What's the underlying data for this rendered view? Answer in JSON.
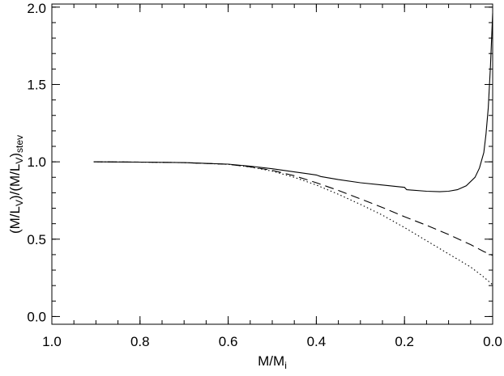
{
  "chart_data": {
    "type": "line",
    "title": "",
    "xlabel": {
      "main": "M/M",
      "sub": "i"
    },
    "ylabel": {
      "part1": "(M/L",
      "sub1": "V",
      "part2": ")/(M/L",
      "sub2": "V",
      "part3": ")",
      "sub3": "stev"
    },
    "xlim": [
      1.0,
      0.0
    ],
    "ylim": [
      -0.05,
      2.02
    ],
    "x_ticks": [
      1.0,
      0.8,
      0.6,
      0.4,
      0.2,
      0.0
    ],
    "x_tick_labels": [
      "1.0",
      "0.8",
      "0.6",
      "0.4",
      "0.2",
      "0.0"
    ],
    "y_ticks": [
      0.0,
      0.5,
      1.0,
      1.5,
      2.0
    ],
    "y_tick_labels": [
      "0.0",
      "0.5",
      "1.0",
      "1.5",
      "2.0"
    ],
    "x_minor_step": 0.05,
    "y_minor_step": 0.1,
    "grid": false,
    "legend": "none",
    "series": [
      {
        "style": "solid",
        "x": [
          0.905,
          0.8,
          0.7,
          0.6,
          0.55,
          0.5,
          0.45,
          0.4,
          0.39,
          0.35,
          0.3,
          0.25,
          0.2,
          0.195,
          0.15,
          0.12,
          0.1,
          0.08,
          0.06,
          0.04,
          0.03,
          0.02,
          0.015,
          0.01,
          0.005,
          0.0
        ],
        "y": [
          1.0,
          0.998,
          0.995,
          0.985,
          0.972,
          0.955,
          0.935,
          0.915,
          0.905,
          0.885,
          0.865,
          0.85,
          0.835,
          0.82,
          0.81,
          0.807,
          0.81,
          0.82,
          0.845,
          0.9,
          0.96,
          1.06,
          1.18,
          1.35,
          1.62,
          1.96
        ]
      },
      {
        "style": "dashed",
        "x": [
          0.905,
          0.8,
          0.7,
          0.6,
          0.55,
          0.5,
          0.45,
          0.4,
          0.35,
          0.3,
          0.25,
          0.2,
          0.15,
          0.1,
          0.05,
          0.02,
          0.0
        ],
        "y": [
          1.0,
          0.998,
          0.995,
          0.984,
          0.968,
          0.945,
          0.91,
          0.865,
          0.815,
          0.76,
          0.705,
          0.645,
          0.59,
          0.53,
          0.465,
          0.42,
          0.395
        ]
      },
      {
        "style": "dotted",
        "x": [
          0.905,
          0.8,
          0.7,
          0.6,
          0.55,
          0.5,
          0.45,
          0.4,
          0.35,
          0.3,
          0.25,
          0.2,
          0.15,
          0.1,
          0.05,
          0.02,
          0.0
        ],
        "y": [
          1.0,
          0.998,
          0.995,
          0.984,
          0.966,
          0.94,
          0.9,
          0.85,
          0.79,
          0.725,
          0.655,
          0.575,
          0.49,
          0.405,
          0.32,
          0.255,
          0.205
        ]
      }
    ]
  }
}
